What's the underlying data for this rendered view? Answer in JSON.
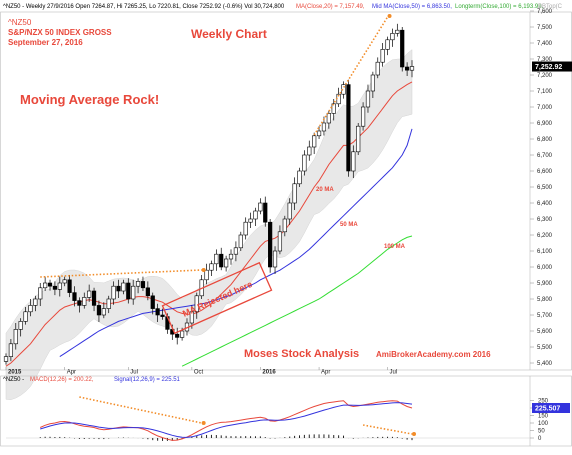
{
  "header": {
    "title_line": "^NZ50 - Weekly 27/9/2016 Open 7264.87, Hi 7265.25, Lo 7220.81, Close 7252.92 (-0.6%) Vol 30,724,800",
    "ma20_text": "MA(Close,20) = 7,157.49,",
    "ma50_text": "Mid MA(Close,50) = 6,863.50,",
    "ma100_text": "Longterm(Close,100) = 6,193.99,",
    "trail_text": "BBTop(C"
  },
  "annotations": {
    "symbol": "^NZ50",
    "index_name": "S&P/NZX 50 INDEX GROSS",
    "date": "September 27, 2016",
    "chart_title": "Weekly Chart",
    "headline": "Moving Average Rock!",
    "ma_rejected": "MA Rejected here",
    "label_ma20": "20 MA",
    "label_ma50": "50 MA",
    "label_ma100": "100 MA",
    "author": "Moses Stock Analysis",
    "site": "AmiBrokerAcademy.com  2016"
  },
  "macd_header": {
    "name": "^NZ50 -",
    "macd_text": "MACD(12,26) = 200.22,",
    "signal_text": "Signal(12,26,9) = 225.51"
  },
  "colors": {
    "candle": "#000000",
    "ma20": "#e8483b",
    "ma50": "#3333dd",
    "ma100": "#33dd33",
    "bollinger_band": "#e6e6e6",
    "trendline": "#f28c28",
    "annotation_red": "#e8483b",
    "macd": "#e8483b",
    "signal": "#3333dd",
    "last_price_box": "#000000",
    "macd_box": "#3333dd"
  },
  "chart_data": [
    {
      "type": "candlestick",
      "title": "Weekly Chart",
      "xlabel": "",
      "ylabel": "",
      "ylim": [
        5370,
        7700
      ],
      "x_tick_labels": [
        "2015",
        "Apr",
        "Jul",
        "Oct",
        "2016",
        "Apr",
        "Jul"
      ],
      "y_ticks": [
        5400,
        5500,
        5600,
        5700,
        5800,
        5900,
        6000,
        6100,
        6200,
        6300,
        6400,
        6500,
        6600,
        6700,
        6800,
        6900,
        7000,
        7100,
        7200,
        7300,
        7400,
        7500,
        7600
      ],
      "y_tick_labels": [
        "5,400",
        "5,500",
        "5,600",
        "5,700",
        "5,800",
        "5,900",
        "6,000",
        "6,100",
        "6,200",
        "6,300",
        "6,400",
        "6,500",
        "6,600",
        "6,700",
        "6,800",
        "6,900",
        "7,000",
        "7,100",
        "7,200",
        "7,300",
        "7,400",
        "7,500",
        "7,600"
      ],
      "grid": false,
      "last_price_label": "7,252.92",
      "close_series": [
        5440,
        5520,
        5610,
        5660,
        5720,
        5760,
        5800,
        5870,
        5900,
        5880,
        5860,
        5900,
        5920,
        5840,
        5790,
        5760,
        5810,
        5850,
        5760,
        5700,
        5740,
        5800,
        5880,
        5850,
        5900,
        5800,
        5880,
        5910,
        5870,
        5820,
        5740,
        5700,
        5690,
        5610,
        5580,
        5560,
        5600,
        5650,
        5720,
        5820,
        5920,
        5980,
        6020,
        6080,
        6000,
        6050,
        6080,
        6120,
        6200,
        6280,
        6300,
        6350,
        6400,
        6280,
        6000,
        6100,
        6220,
        6300,
        6400,
        6520,
        6600,
        6700,
        6750,
        6820,
        6850,
        6900,
        6960,
        7020,
        7080,
        7140,
        6600,
        6720,
        6880,
        7000,
        7100,
        7200,
        7280,
        7360,
        7420,
        7460,
        7480,
        7250,
        7230,
        7253
      ],
      "series": [
        {
          "name": "MA(Close,20)",
          "values": [
            5380,
            5400,
            5430,
            5460,
            5490,
            5520,
            5560,
            5600,
            5640,
            5670,
            5700,
            5730,
            5750,
            5760,
            5770,
            5780,
            5790,
            5795,
            5790,
            5780,
            5770,
            5770,
            5775,
            5780,
            5790,
            5800,
            5810,
            5815,
            5815,
            5810,
            5800,
            5790,
            5780,
            5760,
            5740,
            5720,
            5710,
            5705,
            5705,
            5715,
            5730,
            5750,
            5770,
            5800,
            5830,
            5860,
            5890,
            5930,
            5970,
            6010,
            6050,
            6090,
            6130,
            6160,
            6170,
            6180,
            6200,
            6230,
            6270,
            6310,
            6350,
            6400,
            6450,
            6500,
            6540,
            6590,
            6640,
            6680,
            6720,
            6760,
            6760,
            6780,
            6810,
            6840,
            6870,
            6910,
            6950,
            6990,
            7030,
            7070,
            7100,
            7120,
            7140,
            7157
          ]
        },
        {
          "name": "Mid MA(Close,50)",
          "values": [
            null,
            null,
            null,
            null,
            null,
            null,
            null,
            null,
            null,
            null,
            null,
            5440,
            5460,
            5480,
            5500,
            5520,
            5540,
            5560,
            5580,
            5600,
            5615,
            5630,
            5645,
            5660,
            5670,
            5680,
            5690,
            5700,
            5710,
            5715,
            5720,
            5725,
            5730,
            5735,
            5740,
            5745,
            5750,
            5755,
            5760,
            5765,
            5770,
            5775,
            5785,
            5795,
            5805,
            5815,
            5825,
            5840,
            5855,
            5870,
            5885,
            5900,
            5920,
            5935,
            5950,
            5965,
            5980,
            6000,
            6020,
            6040,
            6060,
            6085,
            6110,
            6140,
            6170,
            6200,
            6230,
            6260,
            6290,
            6320,
            6350,
            6380,
            6410,
            6440,
            6470,
            6500,
            6530,
            6560,
            6590,
            6620,
            6660,
            6700,
            6760,
            6863
          ]
        },
        {
          "name": "Longterm(Close,100)",
          "values": [
            null,
            null,
            null,
            null,
            null,
            null,
            null,
            null,
            null,
            null,
            null,
            null,
            null,
            null,
            null,
            null,
            null,
            null,
            null,
            null,
            null,
            null,
            null,
            null,
            null,
            null,
            null,
            null,
            null,
            null,
            null,
            null,
            null,
            null,
            null,
            null,
            5380,
            5395,
            5410,
            5425,
            5440,
            5455,
            5470,
            5485,
            5500,
            5515,
            5530,
            5545,
            5560,
            5575,
            5590,
            5605,
            5620,
            5635,
            5650,
            5665,
            5680,
            5695,
            5710,
            5725,
            5740,
            5755,
            5770,
            5785,
            5800,
            5820,
            5840,
            5860,
            5880,
            5900,
            5920,
            5940,
            5960,
            5985,
            6010,
            6035,
            6060,
            6085,
            6110,
            6130,
            6150,
            6170,
            6185,
            6194
          ]
        }
      ]
    },
    {
      "type": "line",
      "title": "",
      "xlabel": "",
      "ylabel": "",
      "ylim": [
        -25,
        280
      ],
      "y_ticks": [
        0,
        50,
        100,
        150,
        200,
        250
      ],
      "y_tick_labels": [
        "0",
        "50",
        "100",
        "150",
        "200",
        "250"
      ],
      "last_value_label": "225.507",
      "series": [
        {
          "name": "MACD(12,26)",
          "values": [
            null,
            null,
            null,
            null,
            null,
            null,
            null,
            70,
            85,
            95,
            100,
            108,
            110,
            105,
            95,
            85,
            78,
            75,
            70,
            60,
            55,
            58,
            64,
            70,
            74,
            72,
            70,
            68,
            60,
            48,
            30,
            14,
            3,
            -8,
            -16,
            -14,
            -6,
            6,
            22,
            40,
            58,
            75,
            88,
            98,
            104,
            106,
            109,
            114,
            119,
            125,
            130,
            134,
            138,
            132,
            114,
            112,
            120,
            130,
            142,
            156,
            170,
            184,
            198,
            210,
            220,
            230,
            236,
            240,
            245,
            248,
            218,
            210,
            214,
            220,
            226,
            232,
            238,
            242,
            246,
            248,
            246,
            226,
            210,
            200
          ]
        },
        {
          "name": "Signal(12,26,9)",
          "values": [
            null,
            null,
            null,
            null,
            null,
            null,
            null,
            60,
            70,
            80,
            88,
            95,
            100,
            101,
            100,
            96,
            90,
            84,
            79,
            73,
            68,
            64,
            64,
            66,
            68,
            69,
            69,
            69,
            67,
            63,
            56,
            47,
            38,
            27,
            18,
            10,
            5,
            4,
            8,
            16,
            26,
            38,
            50,
            62,
            72,
            80,
            86,
            92,
            97,
            102,
            108,
            113,
            118,
            121,
            120,
            118,
            118,
            120,
            124,
            130,
            138,
            146,
            156,
            166,
            176,
            186,
            195,
            204,
            212,
            219,
            219,
            218,
            217,
            218,
            220,
            222,
            225,
            228,
            231,
            234,
            236,
            234,
            230,
            226
          ]
        }
      ]
    }
  ]
}
